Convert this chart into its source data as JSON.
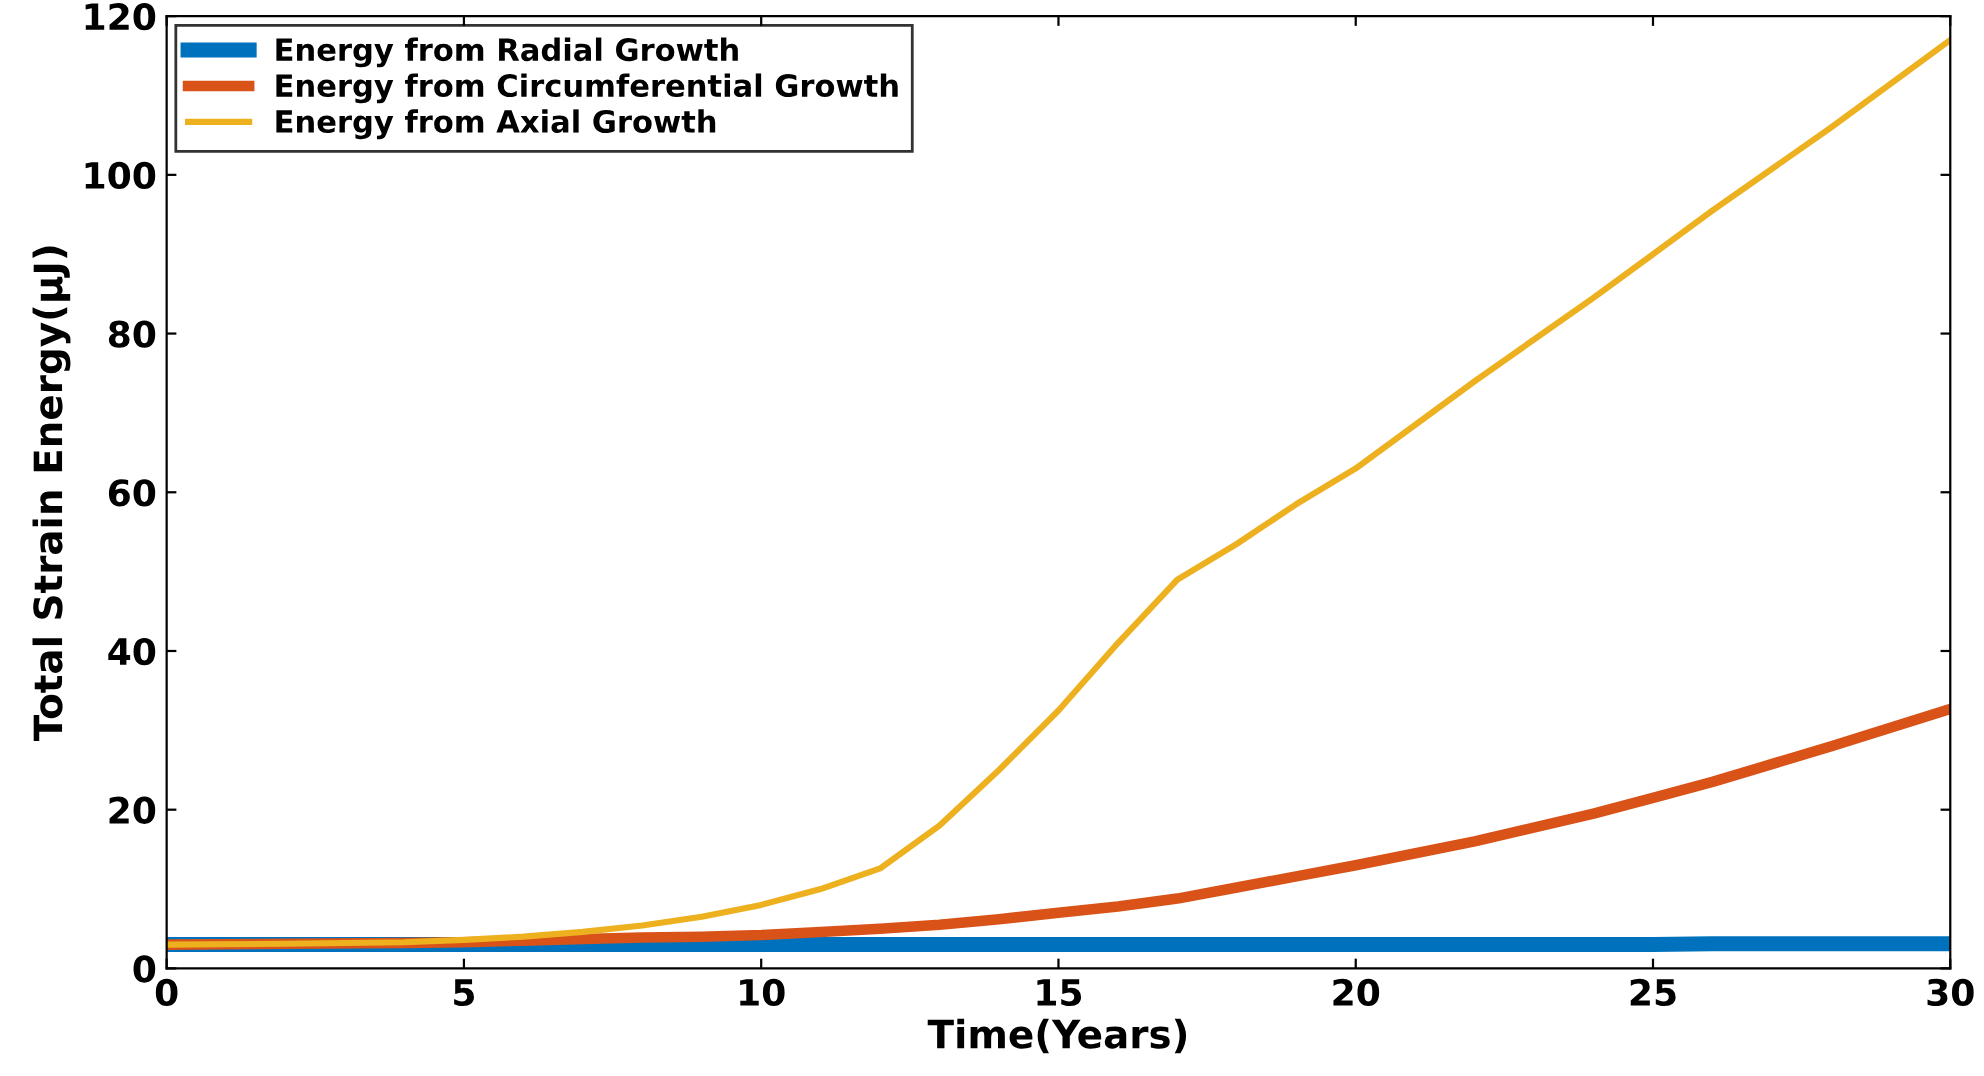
{
  "chart_data": {
    "type": "line",
    "xlabel": "Time(Years)",
    "ylabel": "Total Strain Energy(μJ)",
    "x": [
      0,
      2,
      4,
      5,
      6,
      7,
      8,
      9,
      10,
      11,
      12,
      13,
      14,
      15,
      16,
      17,
      18,
      19,
      20,
      22,
      24,
      25,
      26,
      28,
      30
    ],
    "series": [
      {
        "name": "Energy from Radial Growth",
        "color": "#0072bd",
        "values": [
          3,
          3,
          3,
          3,
          3,
          3,
          3,
          3,
          3,
          3,
          3,
          3,
          3,
          3,
          3,
          3,
          3,
          3,
          3,
          3,
          3,
          3,
          3.1,
          3.1,
          3.1
        ]
      },
      {
        "name": "Energy from Circumferential Growth",
        "color": "#d95319",
        "values": [
          3,
          3.1,
          3.2,
          3.3,
          3.5,
          3.7,
          3.9,
          4,
          4.2,
          4.6,
          5,
          5.5,
          6.2,
          7,
          7.8,
          8.8,
          10.2,
          11.6,
          13,
          16,
          19.5,
          21.5,
          23.5,
          28,
          32.7
        ]
      },
      {
        "name": "Energy from Axial Growth",
        "color": "#edb120",
        "values": [
          3,
          3.1,
          3.3,
          3.6,
          4,
          4.6,
          5.4,
          6.5,
          8,
          10,
          12.6,
          18,
          25,
          32.5,
          41,
          49,
          53.5,
          58.5,
          63,
          74,
          84.5,
          90,
          95.5,
          106,
          117
        ]
      }
    ],
    "xlim": [
      0,
      30
    ],
    "ylim": [
      0,
      120
    ],
    "xticks": [
      0,
      5,
      10,
      15,
      20,
      25,
      30
    ],
    "yticks": [
      0,
      20,
      40,
      60,
      80,
      100,
      120
    ],
    "legend": "top left",
    "grid": false,
    "line_style": "solid",
    "marker": "none"
  }
}
